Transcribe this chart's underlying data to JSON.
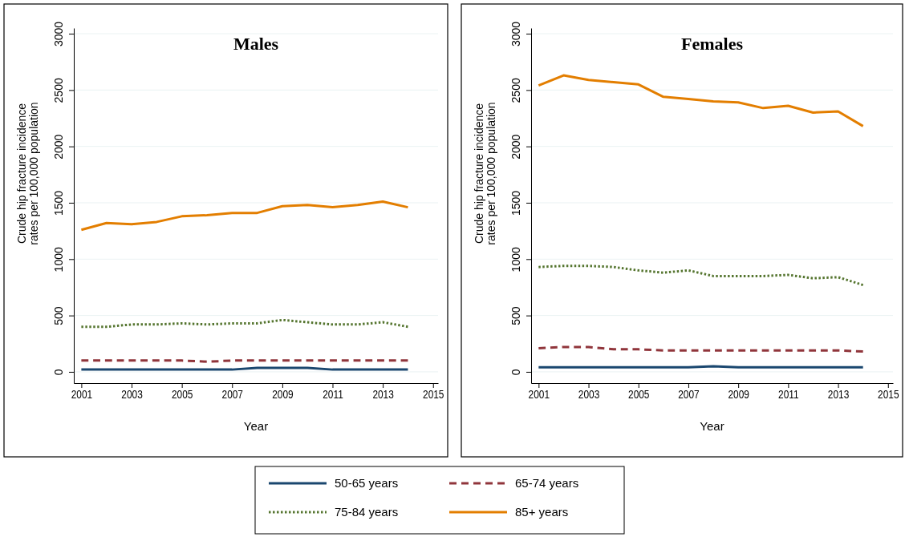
{
  "chart_data": [
    {
      "type": "line",
      "title": "Males",
      "xlabel": "Year",
      "ylabel": "Crude hip fracture incidence rates per 100,000 population",
      "x": [
        2001,
        2002,
        2003,
        2004,
        2005,
        2006,
        2007,
        2008,
        2009,
        2010,
        2011,
        2012,
        2013,
        2014
      ],
      "xlim": [
        2000.7,
        2015.2
      ],
      "xticks": [
        2001,
        2003,
        2005,
        2007,
        2009,
        2011,
        2013,
        2015
      ],
      "ylim": [
        -100,
        3050
      ],
      "yticks": [
        0,
        500,
        1000,
        1500,
        2000,
        2500,
        3000
      ],
      "grid": "y",
      "legend": "bottom",
      "marker": "none",
      "series": [
        {
          "name": "50-65 years",
          "color": "#1a476f",
          "line_style": "solid",
          "values": [
            20,
            20,
            20,
            20,
            20,
            20,
            20,
            35,
            35,
            35,
            20,
            20,
            20,
            20
          ]
        },
        {
          "name": "65-74 years",
          "color": "#90353b",
          "line_style": "dashed",
          "values": [
            100,
            100,
            100,
            100,
            100,
            90,
            100,
            100,
            100,
            100,
            100,
            100,
            100,
            100
          ]
        },
        {
          "name": "75-84 years",
          "color": "#55752f",
          "line_style": "dotted",
          "values": [
            400,
            400,
            420,
            420,
            430,
            420,
            430,
            430,
            460,
            440,
            420,
            420,
            440,
            400
          ]
        },
        {
          "name": "85+ years",
          "color": "#e37e00",
          "line_style": "solid",
          "values": [
            1260,
            1320,
            1310,
            1330,
            1380,
            1390,
            1410,
            1410,
            1470,
            1480,
            1460,
            1480,
            1510,
            1460
          ]
        }
      ]
    },
    {
      "type": "line",
      "title": "Females",
      "xlabel": "Year",
      "ylabel": "Crude hip fracture incidence rates per 100,000 population",
      "x": [
        2001,
        2002,
        2003,
        2004,
        2005,
        2006,
        2007,
        2008,
        2009,
        2010,
        2011,
        2012,
        2013,
        2014
      ],
      "xlim": [
        2000.7,
        2015.2
      ],
      "xticks": [
        2001,
        2003,
        2005,
        2007,
        2009,
        2011,
        2013,
        2015
      ],
      "ylim": [
        -100,
        3050
      ],
      "yticks": [
        0,
        500,
        1000,
        1500,
        2000,
        2500,
        3000
      ],
      "grid": "y",
      "marker": "none",
      "series": [
        {
          "color": "#1a476f",
          "line_style": "solid",
          "values": [
            40,
            40,
            40,
            40,
            40,
            40,
            40,
            50,
            40,
            40,
            40,
            40,
            40,
            40
          ]
        },
        {
          "color": "#90353b",
          "line_style": "dashed",
          "values": [
            210,
            220,
            220,
            200,
            200,
            190,
            190,
            190,
            190,
            190,
            190,
            190,
            190,
            180
          ]
        },
        {
          "color": "#55752f",
          "line_style": "dotted",
          "values": [
            930,
            940,
            940,
            930,
            900,
            880,
            900,
            850,
            850,
            850,
            860,
            830,
            840,
            770
          ]
        },
        {
          "color": "#e37e00",
          "line_style": "solid",
          "values": [
            2540,
            2630,
            2590,
            2570,
            2550,
            2440,
            2420,
            2400,
            2390,
            2340,
            2360,
            2300,
            2310,
            2180
          ]
        }
      ]
    }
  ]
}
